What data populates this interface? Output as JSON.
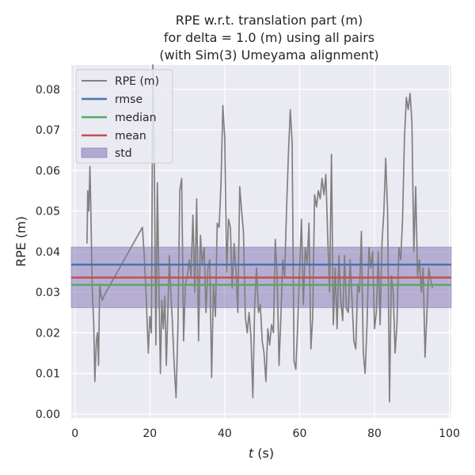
{
  "chart_data": {
    "type": "line",
    "title_lines": [
      "RPE w.r.t. translation part (m)",
      "for delta = 1.0 (m) using all pairs",
      "(with Sim(3) Umeyama alignment)"
    ],
    "xlabel_var": "t",
    "xlabel_unit": " (s)",
    "ylabel": "RPE (m)",
    "xlim": [
      -1,
      100.5
    ],
    "ylim": [
      -0.001,
      0.086
    ],
    "xticks": [
      0,
      20,
      40,
      60,
      80,
      100
    ],
    "yticks": [
      0.0,
      0.01,
      0.02,
      0.03,
      0.04,
      0.05,
      0.06,
      0.07,
      0.08
    ],
    "ytick_labels": [
      "0.00",
      "0.01",
      "0.02",
      "0.03",
      "0.04",
      "0.05",
      "0.06",
      "0.07",
      "0.08"
    ],
    "grid": true,
    "legend_position": "top-left",
    "legend": [
      "RPE (m)",
      "rmse",
      "median",
      "mean",
      "std"
    ],
    "series": [
      {
        "name": "RPE (m)",
        "color": "#808080",
        "x": [
          3.2,
          3.4,
          3.7,
          4.0,
          4.2,
          4.6,
          5.0,
          5.3,
          5.7,
          6.0,
          6.3,
          6.6,
          7.0,
          7.3,
          7.7,
          18.0,
          18.5,
          19.0,
          19.6,
          20.0,
          20.4,
          20.8,
          21.2,
          21.6,
          22.0,
          22.4,
          22.8,
          23.2,
          23.6,
          24.0,
          24.4,
          24.8,
          25.2,
          25.6,
          26.0,
          26.5,
          27.0,
          27.5,
          28.0,
          28.5,
          29.0,
          29.5,
          30.0,
          30.5,
          31.0,
          31.5,
          32.0,
          32.5,
          33.0,
          33.5,
          34.0,
          34.5,
          35.0,
          35.5,
          36.0,
          36.5,
          37.0,
          37.5,
          38.0,
          38.5,
          39.0,
          39.5,
          40.0,
          40.5,
          41.0,
          41.5,
          42.0,
          42.5,
          43.0,
          43.5,
          44.0,
          44.5,
          45.0,
          45.5,
          46.0,
          46.5,
          47.0,
          47.5,
          48.0,
          48.5,
          49.0,
          49.5,
          50.0,
          50.5,
          51.0,
          51.5,
          52.0,
          52.5,
          53.0,
          53.5,
          54.0,
          54.5,
          55.0,
          55.5,
          56.0,
          56.5,
          57.0,
          57.5,
          58.0,
          58.5,
          59.0,
          59.5,
          60.0,
          60.5,
          61.0,
          61.5,
          62.0,
          62.5,
          63.0,
          63.5,
          64.0,
          64.5,
          65.0,
          65.5,
          66.0,
          66.5,
          67.0,
          67.5,
          68.0,
          68.5,
          69.0,
          69.5,
          70.0,
          70.5,
          71.0,
          71.5,
          72.0,
          72.5,
          73.0,
          73.5,
          74.0,
          74.5,
          75.0,
          75.5,
          76.0,
          76.5,
          77.0,
          77.5,
          78.0,
          78.5,
          79.0,
          79.5,
          80.0,
          80.5,
          81.0,
          81.5,
          82.0,
          82.5,
          83.0,
          83.5,
          84.0,
          84.5,
          85.0,
          85.5,
          86.0,
          86.5,
          87.0,
          87.5,
          88.0,
          88.5,
          89.0,
          89.5,
          90.0,
          90.5,
          91.0,
          91.5,
          92.0,
          92.5,
          93.0,
          93.5,
          94.0,
          94.5,
          95.0,
          95.5
        ],
        "values": [
          0.042,
          0.055,
          0.05,
          0.061,
          0.052,
          0.031,
          0.022,
          0.008,
          0.018,
          0.02,
          0.012,
          0.032,
          0.029,
          0.028,
          0.029,
          0.046,
          0.039,
          0.029,
          0.015,
          0.024,
          0.02,
          0.086,
          0.06,
          0.017,
          0.057,
          0.032,
          0.01,
          0.028,
          0.021,
          0.029,
          0.012,
          0.025,
          0.039,
          0.03,
          0.023,
          0.012,
          0.004,
          0.022,
          0.055,
          0.058,
          0.018,
          0.032,
          0.034,
          0.038,
          0.034,
          0.049,
          0.03,
          0.053,
          0.018,
          0.044,
          0.037,
          0.041,
          0.025,
          0.036,
          0.038,
          0.009,
          0.032,
          0.024,
          0.047,
          0.046,
          0.057,
          0.076,
          0.068,
          0.035,
          0.048,
          0.046,
          0.031,
          0.042,
          0.035,
          0.025,
          0.056,
          0.05,
          0.045,
          0.024,
          0.02,
          0.025,
          0.019,
          0.004,
          0.027,
          0.036,
          0.025,
          0.027,
          0.018,
          0.015,
          0.008,
          0.021,
          0.017,
          0.022,
          0.02,
          0.043,
          0.034,
          0.012,
          0.024,
          0.038,
          0.034,
          0.05,
          0.064,
          0.075,
          0.067,
          0.013,
          0.011,
          0.022,
          0.036,
          0.048,
          0.027,
          0.041,
          0.037,
          0.047,
          0.016,
          0.024,
          0.054,
          0.051,
          0.055,
          0.053,
          0.058,
          0.054,
          0.059,
          0.044,
          0.03,
          0.064,
          0.022,
          0.036,
          0.021,
          0.039,
          0.028,
          0.023,
          0.039,
          0.026,
          0.025,
          0.038,
          0.028,
          0.018,
          0.016,
          0.032,
          0.03,
          0.045,
          0.015,
          0.01,
          0.022,
          0.041,
          0.036,
          0.04,
          0.021,
          0.025,
          0.04,
          0.022,
          0.042,
          0.05,
          0.063,
          0.05,
          0.003,
          0.034,
          0.03,
          0.015,
          0.022,
          0.041,
          0.038,
          0.048,
          0.068,
          0.078,
          0.075,
          0.079,
          0.072,
          0.04,
          0.056,
          0.034,
          0.038,
          0.03,
          0.036,
          0.014,
          0.025,
          0.036,
          0.033,
          0.031
        ]
      }
    ],
    "stats": [
      {
        "name": "rmse",
        "value": 0.0368,
        "color": "#4c72b0"
      },
      {
        "name": "median",
        "value": 0.0318,
        "color": "#55a868"
      },
      {
        "name": "mean",
        "value": 0.0336,
        "color": "#c44e52"
      }
    ],
    "std_band": {
      "name": "std",
      "lower": 0.0262,
      "upper": 0.0411,
      "color": "#8172b2"
    }
  }
}
